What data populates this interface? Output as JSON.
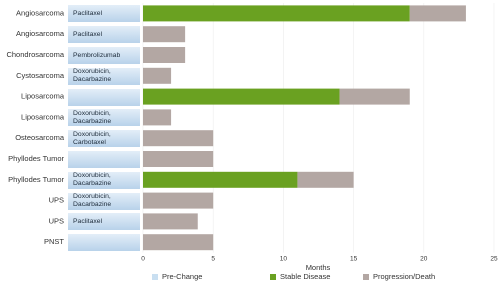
{
  "chart_data": {
    "type": "stacked-bar-horizontal",
    "categories": [
      "Angiosarcoma",
      "Angiosarcoma",
      "Chondrosarcoma",
      "Cystosarcoma",
      "Liposarcoma",
      "Liposarcoma",
      "Osteosarcoma",
      "Phyllodes Tumor",
      "Phyllodes Tumor",
      "UPS",
      "UPS",
      "PNST"
    ],
    "treatments": [
      "Paclitaxel",
      "Paclitaxel",
      "Pembrolizumab",
      "Doxorubicin, Dacarbazine",
      null,
      "Doxorubicin, Dacarbazine",
      "Doxorubicin, Carbotaxel",
      null,
      "Doxorubicin, Dacarbazine",
      "Doxorubicin, Dacarbazine",
      "Paclitaxel",
      null
    ],
    "pre_change": {
      "name": "Pre-Change",
      "color": "#c9dff1"
    },
    "series": [
      {
        "name": "Stable Disease",
        "color": "#6aa121",
        "values": [
          19,
          0,
          0,
          0,
          14,
          0,
          0,
          0,
          11,
          0,
          0,
          0
        ]
      },
      {
        "name": "Progression/Death",
        "color": "#b3a7a3",
        "values": [
          4,
          3,
          3,
          2,
          5,
          2,
          5,
          5,
          4,
          5,
          3.9,
          5
        ]
      }
    ],
    "xlabel": "Months",
    "xlim": [
      0,
      25
    ],
    "xticks": [
      0,
      5,
      10,
      15,
      20,
      25
    ],
    "grid": true,
    "legend": "bottom"
  }
}
